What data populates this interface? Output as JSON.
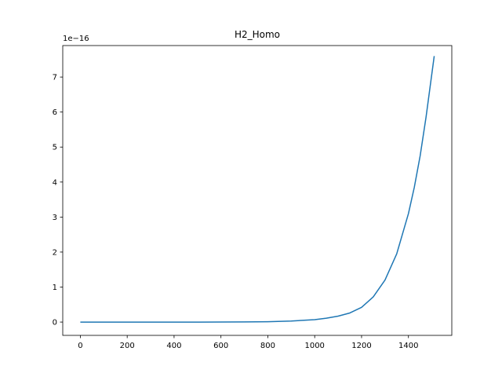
{
  "chart_data": {
    "type": "line",
    "title": "H2_Homo",
    "xlabel": "",
    "ylabel": "",
    "y_offset_label": "1e−16",
    "xlim": [
      -75,
      1585
    ],
    "ylim": [
      -0.38,
      7.9
    ],
    "x_ticks": [
      0,
      200,
      400,
      600,
      800,
      1000,
      1200,
      1400
    ],
    "x_tick_labels": [
      "0",
      "200",
      "400",
      "600",
      "800",
      "1000",
      "1200",
      "1400"
    ],
    "y_ticks": [
      0,
      1,
      2,
      3,
      4,
      5,
      6,
      7
    ],
    "y_tick_labels": [
      "0",
      "1",
      "2",
      "3",
      "4",
      "5",
      "6",
      "7"
    ],
    "grid": false,
    "series": [
      {
        "color": "#1f77b4",
        "x": [
          0,
          100,
          200,
          300,
          400,
          500,
          600,
          700,
          800,
          900,
          1000,
          1050,
          1100,
          1150,
          1200,
          1250,
          1300,
          1350,
          1400,
          1425,
          1450,
          1475,
          1500,
          1510
        ],
        "y": [
          0,
          0,
          0,
          0,
          0,
          0,
          0.001,
          0.003,
          0.011,
          0.03,
          0.07,
          0.11,
          0.17,
          0.26,
          0.42,
          0.72,
          1.2,
          1.95,
          3.1,
          3.85,
          4.75,
          5.85,
          7.1,
          7.6
        ]
      }
    ]
  }
}
